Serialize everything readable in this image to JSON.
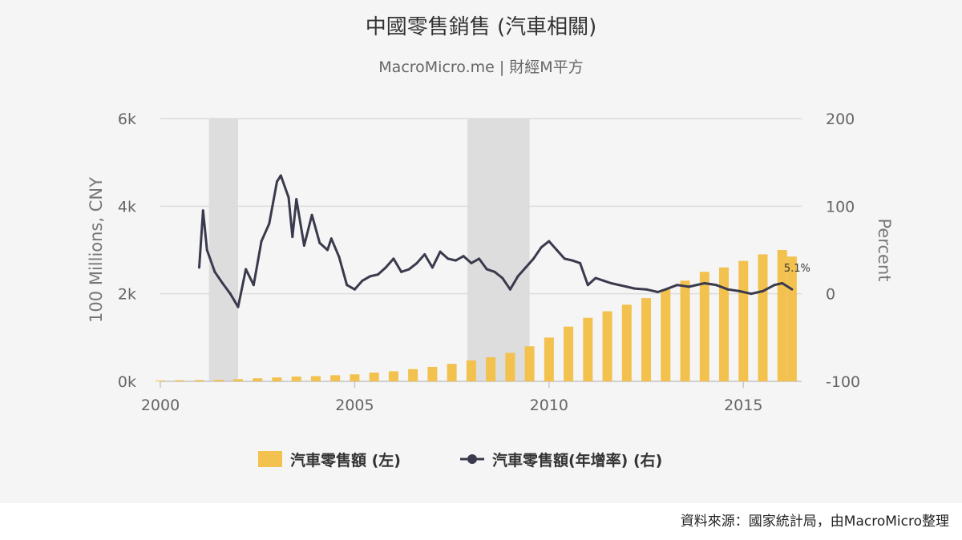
{
  "chart_data": {
    "type": "bar+line",
    "title": "中國零售銷售 (汽車相關)",
    "subtitle": "MacroMicro.me | 財經M平方",
    "y_left": {
      "label": "100 Millions, CNY",
      "range": [
        0,
        6000
      ],
      "ticks": [
        "0k",
        "2k",
        "4k",
        "6k"
      ],
      "tick_values": [
        0,
        2000,
        4000,
        6000
      ]
    },
    "y_right": {
      "label": "Percent",
      "range": [
        -100,
        200
      ],
      "ticks": [
        "-100",
        "0",
        "100",
        "200"
      ],
      "tick_values": [
        -100,
        0,
        100,
        200
      ]
    },
    "x_axis": {
      "range": [
        2000.0,
        2016.5
      ],
      "ticks": [
        "2000",
        "2005",
        "2010",
        "2015"
      ],
      "tick_values": [
        2000,
        2005,
        2010,
        2015
      ]
    },
    "grid": true,
    "legend": {
      "placement": "bottom-center"
    },
    "recession_bands": [
      [
        2001.25,
        2002.0
      ],
      [
        2007.9,
        2009.5
      ]
    ],
    "annotation": {
      "text": "5.1%",
      "x": 2016.25,
      "y": 5.1
    },
    "series": [
      {
        "name": "汽車零售額 (左)",
        "kind": "bar",
        "axis": "left",
        "color": "#f2c14e",
        "points": [
          [
            2000.0,
            20
          ],
          [
            2000.5,
            25
          ],
          [
            2001.0,
            30
          ],
          [
            2001.5,
            35
          ],
          [
            2002.0,
            50
          ],
          [
            2002.5,
            70
          ],
          [
            2003.0,
            90
          ],
          [
            2003.5,
            110
          ],
          [
            2004.0,
            120
          ],
          [
            2004.5,
            140
          ],
          [
            2005.0,
            160
          ],
          [
            2005.5,
            200
          ],
          [
            2006.0,
            230
          ],
          [
            2006.5,
            280
          ],
          [
            2007.0,
            330
          ],
          [
            2007.5,
            400
          ],
          [
            2008.0,
            480
          ],
          [
            2008.5,
            550
          ],
          [
            2009.0,
            650
          ],
          [
            2009.5,
            800
          ],
          [
            2010.0,
            1000
          ],
          [
            2010.5,
            1250
          ],
          [
            2011.0,
            1450
          ],
          [
            2011.5,
            1600
          ],
          [
            2012.0,
            1750
          ],
          [
            2012.5,
            1900
          ],
          [
            2013.0,
            2100
          ],
          [
            2013.5,
            2300
          ],
          [
            2014.0,
            2500
          ],
          [
            2014.5,
            2600
          ],
          [
            2015.0,
            2750
          ],
          [
            2015.5,
            2900
          ],
          [
            2016.0,
            3000
          ],
          [
            2016.25,
            2850
          ]
        ]
      },
      {
        "name": "汽車零售額(年增率) (右)",
        "kind": "line",
        "axis": "right",
        "color": "#3a3a4d",
        "points": [
          [
            2001.0,
            30
          ],
          [
            2001.1,
            95
          ],
          [
            2001.2,
            50
          ],
          [
            2001.4,
            25
          ],
          [
            2001.6,
            12
          ],
          [
            2001.8,
            0
          ],
          [
            2002.0,
            -15
          ],
          [
            2002.2,
            28
          ],
          [
            2002.4,
            10
          ],
          [
            2002.6,
            60
          ],
          [
            2002.8,
            80
          ],
          [
            2003.0,
            128
          ],
          [
            2003.1,
            135
          ],
          [
            2003.3,
            110
          ],
          [
            2003.4,
            65
          ],
          [
            2003.5,
            108
          ],
          [
            2003.7,
            55
          ],
          [
            2003.9,
            90
          ],
          [
            2004.1,
            58
          ],
          [
            2004.3,
            50
          ],
          [
            2004.4,
            63
          ],
          [
            2004.6,
            42
          ],
          [
            2004.8,
            10
          ],
          [
            2005.0,
            5
          ],
          [
            2005.2,
            15
          ],
          [
            2005.4,
            20
          ],
          [
            2005.6,
            22
          ],
          [
            2005.8,
            30
          ],
          [
            2006.0,
            40
          ],
          [
            2006.2,
            25
          ],
          [
            2006.4,
            28
          ],
          [
            2006.6,
            35
          ],
          [
            2006.8,
            45
          ],
          [
            2007.0,
            30
          ],
          [
            2007.2,
            48
          ],
          [
            2007.4,
            40
          ],
          [
            2007.6,
            38
          ],
          [
            2007.8,
            43
          ],
          [
            2008.0,
            35
          ],
          [
            2008.2,
            40
          ],
          [
            2008.4,
            28
          ],
          [
            2008.6,
            25
          ],
          [
            2008.8,
            18
          ],
          [
            2009.0,
            5
          ],
          [
            2009.2,
            20
          ],
          [
            2009.4,
            30
          ],
          [
            2009.6,
            40
          ],
          [
            2009.8,
            53
          ],
          [
            2010.0,
            60
          ],
          [
            2010.2,
            50
          ],
          [
            2010.4,
            40
          ],
          [
            2010.6,
            38
          ],
          [
            2010.8,
            35
          ],
          [
            2011.0,
            10
          ],
          [
            2011.2,
            18
          ],
          [
            2011.4,
            15
          ],
          [
            2011.6,
            12
          ],
          [
            2011.8,
            10
          ],
          [
            2012.0,
            8
          ],
          [
            2012.2,
            6
          ],
          [
            2012.5,
            5
          ],
          [
            2012.8,
            2
          ],
          [
            2013.0,
            5
          ],
          [
            2013.3,
            10
          ],
          [
            2013.6,
            8
          ],
          [
            2014.0,
            12
          ],
          [
            2014.3,
            10
          ],
          [
            2014.6,
            5
          ],
          [
            2014.9,
            3
          ],
          [
            2015.2,
            0
          ],
          [
            2015.5,
            3
          ],
          [
            2015.8,
            10
          ],
          [
            2016.0,
            12
          ],
          [
            2016.25,
            5.1
          ]
        ]
      }
    ]
  },
  "legend_items": [
    {
      "label": "汽車零售額 (左)"
    },
    {
      "label": "汽車零售額(年增率) (右)"
    }
  ],
  "source": "資料來源：國家統計局，由MacroMicro整理",
  "colors": {
    "bar": "#f2c14e",
    "line": "#3a3a4d",
    "band": "#dddddd",
    "grid": "#dcdcdc"
  }
}
